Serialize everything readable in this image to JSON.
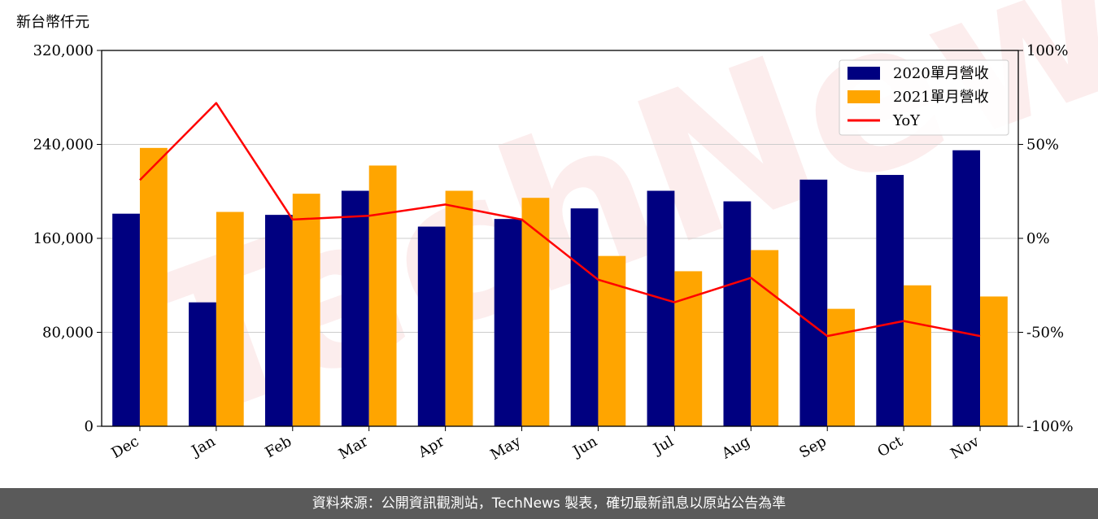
{
  "footer": {
    "text": "資料來源：公開資訊觀測站，TechNews 製表，確切最新訊息以原站公告為準"
  },
  "watermark": {
    "text": "TechNews"
  },
  "colors": {
    "series_2020": "#000080",
    "series_2021": "#FFA500",
    "yoy": "#FF0000"
  },
  "chart_data": {
    "type": "bar",
    "categories": [
      "Dec",
      "Jan",
      "Feb",
      "Mar",
      "Apr",
      "May",
      "Jun",
      "Jul",
      "Aug",
      "Sep",
      "Oct",
      "Nov"
    ],
    "y_unit_label": "新台幣仟元",
    "ylim": [
      0,
      320000
    ],
    "y_ticks": [
      "0",
      "80,000",
      "160,000",
      "240,000",
      "320,000"
    ],
    "y_tick_values": [
      0,
      80000,
      160000,
      240000,
      320000
    ],
    "y2lim": [
      -100,
      100
    ],
    "y2_ticks": [
      "-100%",
      "-50%",
      "0%",
      "50%",
      "100%"
    ],
    "y2_tick_values": [
      -100,
      -50,
      0,
      50,
      100
    ],
    "series": [
      {
        "name": "2020單月營收",
        "kind": "bar",
        "color": "#000080",
        "values": [
          181000,
          105500,
          180000,
          200500,
          170000,
          176500,
          185500,
          200500,
          191500,
          210000,
          214000,
          235000
        ]
      },
      {
        "name": "2021單月營收",
        "kind": "bar",
        "color": "#FFA500",
        "values": [
          237000,
          182500,
          198000,
          222000,
          200500,
          194500,
          145000,
          132000,
          150000,
          100000,
          120000,
          110500
        ]
      },
      {
        "name": "YoY",
        "kind": "line",
        "axis": "right",
        "color": "#FF0000",
        "values": [
          31,
          72,
          10,
          12,
          18,
          10,
          -22,
          -34,
          -21,
          -52,
          -44,
          -52
        ]
      }
    ],
    "legend": {
      "position": "top-right"
    },
    "grid": {
      "y": true
    }
  }
}
